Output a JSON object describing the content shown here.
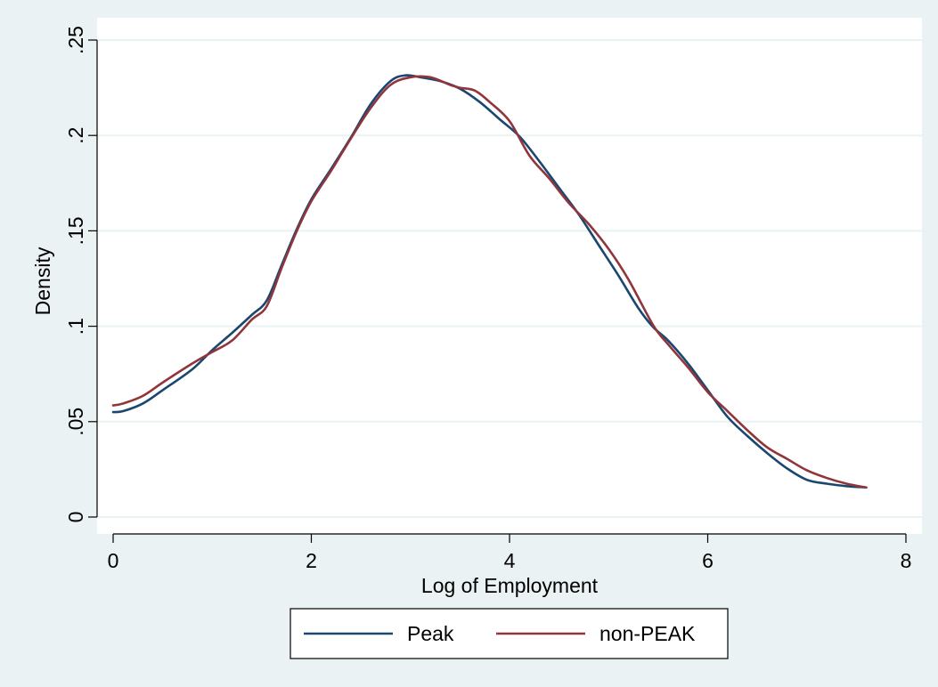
{
  "chart_data": {
    "type": "line",
    "title": "",
    "xlabel": "Log of Employment",
    "ylabel": "Density",
    "xlim": [
      0,
      8
    ],
    "ylim": [
      0,
      0.25
    ],
    "x_ticks": [
      0,
      2,
      4,
      6,
      8
    ],
    "x_tick_labels": [
      "0",
      "2",
      "4",
      "6",
      "8"
    ],
    "y_ticks": [
      0,
      0.05,
      0.1,
      0.15,
      0.2,
      0.25
    ],
    "y_tick_labels": [
      "0",
      ".05",
      ".1",
      ".15",
      ".2",
      ".25"
    ],
    "grid": "horizontal",
    "legend_position": "bottom",
    "colors": {
      "background": "#eaf2f3",
      "plot_background": "#ffffff",
      "grid": "#eaf2f3"
    },
    "series": [
      {
        "name": "Peak",
        "color": "#1a476f",
        "points": [
          [
            0.0,
            0.055
          ],
          [
            0.1,
            0.0555
          ],
          [
            0.3,
            0.0595
          ],
          [
            0.5,
            0.0665
          ],
          [
            0.8,
            0.0775
          ],
          [
            1.0,
            0.0875
          ],
          [
            1.2,
            0.0965
          ],
          [
            1.4,
            0.106
          ],
          [
            1.55,
            0.1135
          ],
          [
            1.7,
            0.132
          ],
          [
            1.85,
            0.1505
          ],
          [
            2.0,
            0.1665
          ],
          [
            2.2,
            0.1825
          ],
          [
            2.4,
            0.199
          ],
          [
            2.6,
            0.2165
          ],
          [
            2.8,
            0.2285
          ],
          [
            2.95,
            0.2315
          ],
          [
            3.1,
            0.2305
          ],
          [
            3.3,
            0.2285
          ],
          [
            3.5,
            0.2245
          ],
          [
            3.7,
            0.2175
          ],
          [
            3.9,
            0.2085
          ],
          [
            4.1,
            0.1995
          ],
          [
            4.3,
            0.1865
          ],
          [
            4.5,
            0.1725
          ],
          [
            4.7,
            0.1585
          ],
          [
            4.9,
            0.1425
          ],
          [
            5.1,
            0.1265
          ],
          [
            5.3,
            0.1095
          ],
          [
            5.45,
            0.0995
          ],
          [
            5.6,
            0.0925
          ],
          [
            5.8,
            0.0805
          ],
          [
            6.0,
            0.0665
          ],
          [
            6.2,
            0.0525
          ],
          [
            6.4,
            0.0425
          ],
          [
            6.6,
            0.0335
          ],
          [
            6.8,
            0.0255
          ],
          [
            7.0,
            0.0195
          ],
          [
            7.2,
            0.0175
          ],
          [
            7.4,
            0.0162
          ],
          [
            7.6,
            0.0155
          ]
        ]
      },
      {
        "name": "non-PEAK",
        "color": "#90353b",
        "points": [
          [
            0.0,
            0.0585
          ],
          [
            0.1,
            0.0595
          ],
          [
            0.3,
            0.0635
          ],
          [
            0.5,
            0.0705
          ],
          [
            0.8,
            0.0805
          ],
          [
            1.0,
            0.0865
          ],
          [
            1.2,
            0.0925
          ],
          [
            1.4,
            0.1035
          ],
          [
            1.55,
            0.1105
          ],
          [
            1.7,
            0.1305
          ],
          [
            1.85,
            0.1495
          ],
          [
            2.0,
            0.1655
          ],
          [
            2.2,
            0.1815
          ],
          [
            2.4,
            0.1985
          ],
          [
            2.6,
            0.2145
          ],
          [
            2.8,
            0.2265
          ],
          [
            3.0,
            0.2305
          ],
          [
            3.2,
            0.2305
          ],
          [
            3.4,
            0.2265
          ],
          [
            3.5,
            0.225
          ],
          [
            3.65,
            0.2235
          ],
          [
            3.8,
            0.2175
          ],
          [
            4.0,
            0.2075
          ],
          [
            4.2,
            0.1895
          ],
          [
            4.4,
            0.1775
          ],
          [
            4.6,
            0.1645
          ],
          [
            4.8,
            0.1535
          ],
          [
            5.0,
            0.1405
          ],
          [
            5.2,
            0.1245
          ],
          [
            5.45,
            0.1005
          ],
          [
            5.6,
            0.0905
          ],
          [
            5.8,
            0.0785
          ],
          [
            6.0,
            0.0655
          ],
          [
            6.2,
            0.0555
          ],
          [
            6.4,
            0.0455
          ],
          [
            6.6,
            0.0365
          ],
          [
            6.8,
            0.0305
          ],
          [
            7.0,
            0.0245
          ],
          [
            7.2,
            0.0205
          ],
          [
            7.4,
            0.0175
          ],
          [
            7.6,
            0.0155
          ]
        ]
      }
    ]
  }
}
